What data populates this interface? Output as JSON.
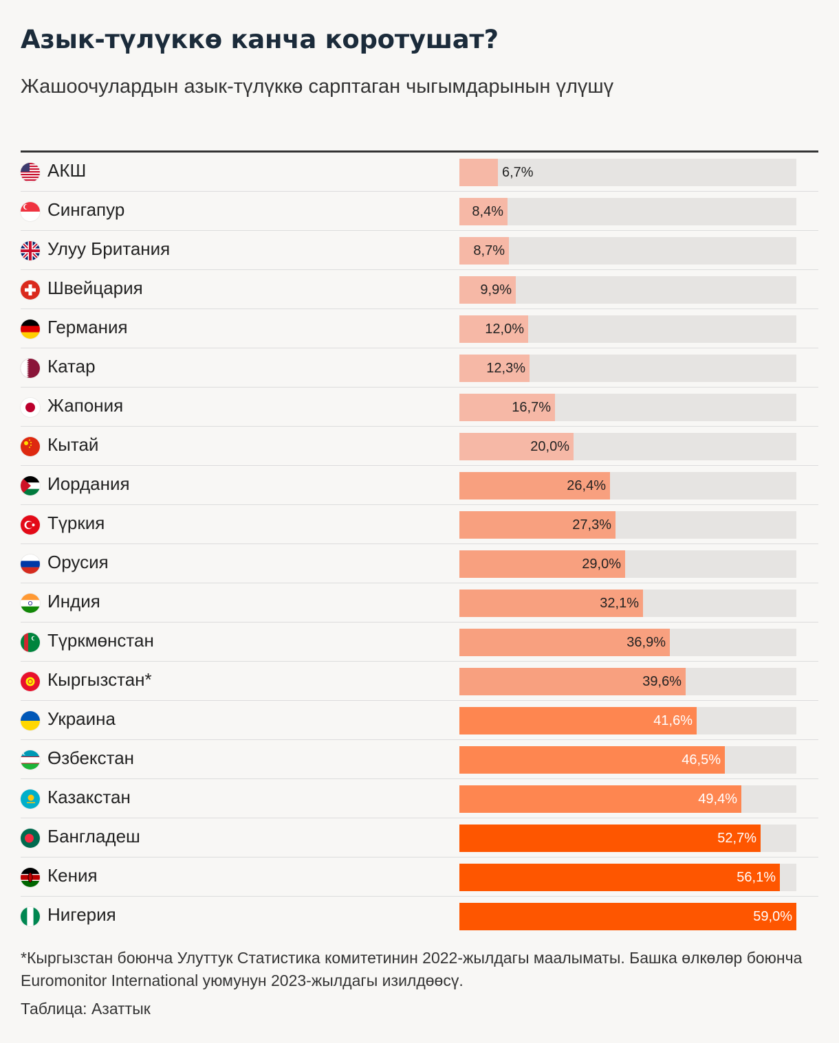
{
  "header": {
    "title": "Азык-түлүккө канча коротушат?",
    "subtitle": "Жашоочулардын азык-түлүккө сарптаган чыгымдарынын үлүшү"
  },
  "chart_data": {
    "type": "bar",
    "orientation": "horizontal",
    "title": "Азык-түлүккө канча коротушат?",
    "subtitle": "Жашоочулардын азык-түлүккө сарптаган чыгымдарынын үлүшү",
    "unit": "%",
    "xlim": [
      0,
      59.0
    ],
    "categories": [
      "АКШ",
      "Сингапур",
      "Улуу Британия",
      "Швейцария",
      "Германия",
      "Катар",
      "Жапония",
      "Кытай",
      "Иордания",
      "Түркия",
      "Орусия",
      "Индия",
      "Түркмөнстан",
      "Кыргызстан*",
      "Украина",
      "Өзбекстан",
      "Казакстан",
      "Бангладеш",
      "Кения",
      "Нигерия"
    ],
    "values": [
      6.7,
      8.4,
      8.7,
      9.9,
      12.0,
      12.3,
      16.7,
      20.0,
      26.4,
      27.3,
      29.0,
      32.1,
      36.9,
      39.6,
      41.6,
      46.5,
      49.4,
      52.7,
      56.1,
      59.0
    ],
    "labels": [
      "6,7%",
      "8,4%",
      "8,7%",
      "9,9%",
      "12,0%",
      "12,3%",
      "16,7%",
      "20,0%",
      "26,4%",
      "27,3%",
      "29,0%",
      "32,1%",
      "36,9%",
      "39,6%",
      "41,6%",
      "46,5%",
      "49,4%",
      "52,7%",
      "56,1%",
      "59,0%"
    ],
    "flags": [
      "us-flag-icon",
      "sg-flag-icon",
      "gb-flag-icon",
      "ch-flag-icon",
      "de-flag-icon",
      "qa-flag-icon",
      "jp-flag-icon",
      "cn-flag-icon",
      "jo-flag-icon",
      "tr-flag-icon",
      "ru-flag-icon",
      "in-flag-icon",
      "tm-flag-icon",
      "kg-flag-icon",
      "ua-flag-icon",
      "uz-flag-icon",
      "kz-flag-icon",
      "bd-flag-icon",
      "ke-flag-icon",
      "ng-flag-icon"
    ],
    "color_scale": [
      {
        "max": 20,
        "color": "#f6b8a6"
      },
      {
        "max": 40,
        "color": "#f8a07f"
      },
      {
        "max": 50,
        "color": "#fe8650"
      },
      {
        "max": 100,
        "color": "#fe5600"
      }
    ],
    "track_color": "#e6e4e2"
  },
  "footnote": "*Кыргызстан боюнча Улуттук Статистика комитетинин 2022-жылдагы маалыматы. Башка өлкөлөр боюнча Euromonitor International уюмунун 2023-жылдагы изилдөөсү.",
  "source": "Таблица: Азаттык"
}
